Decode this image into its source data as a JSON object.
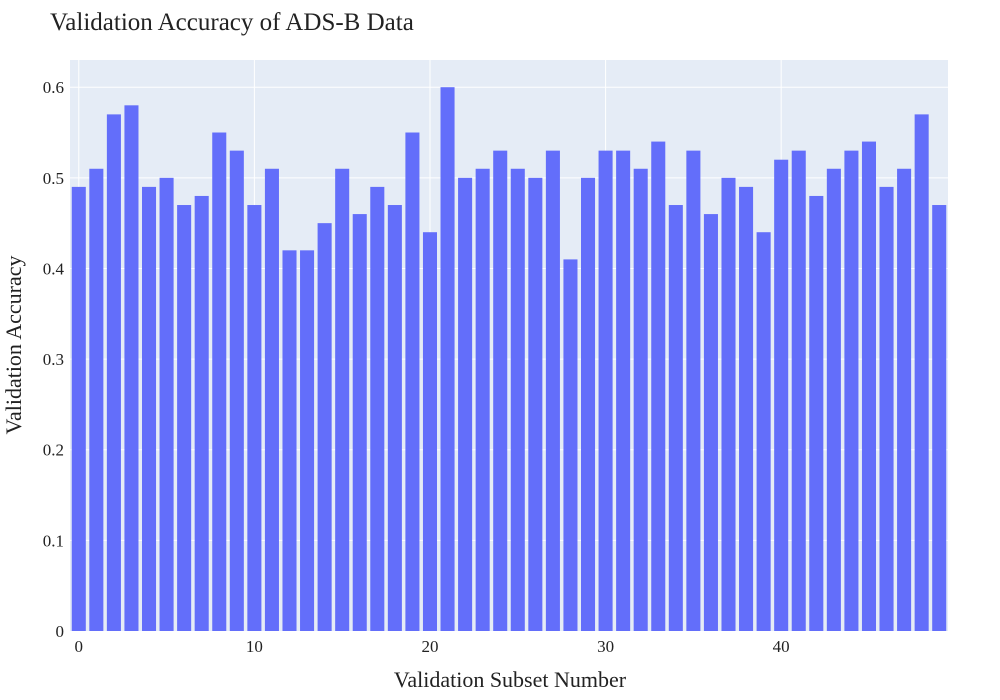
{
  "chart_data": {
    "type": "bar",
    "title": "Validation Accuracy of ADS-B Data",
    "xlabel": "Validation Subset Number",
    "ylabel": "Validation Accuracy",
    "x": [
      0,
      1,
      2,
      3,
      4,
      5,
      6,
      7,
      8,
      9,
      10,
      11,
      12,
      13,
      14,
      15,
      16,
      17,
      18,
      19,
      20,
      21,
      22,
      23,
      24,
      25,
      26,
      27,
      28,
      29,
      30,
      31,
      32,
      33,
      34,
      35,
      36,
      37,
      38,
      39,
      40,
      41,
      42,
      43,
      44,
      45,
      46,
      47,
      48,
      49
    ],
    "values": [
      0.49,
      0.51,
      0.57,
      0.58,
      0.49,
      0.5,
      0.47,
      0.48,
      0.55,
      0.53,
      0.47,
      0.51,
      0.42,
      0.42,
      0.45,
      0.51,
      0.46,
      0.49,
      0.47,
      0.55,
      0.44,
      0.6,
      0.5,
      0.51,
      0.53,
      0.51,
      0.5,
      0.53,
      0.41,
      0.5,
      0.53,
      0.53,
      0.51,
      0.54,
      0.47,
      0.53,
      0.46,
      0.5,
      0.49,
      0.44,
      0.52,
      0.53,
      0.48,
      0.51,
      0.53,
      0.54,
      0.49,
      0.51,
      0.57,
      0.47
    ],
    "xlim": [
      -0.5,
      49.5
    ],
    "ylim": [
      0,
      0.63
    ],
    "xticks": [
      0,
      10,
      20,
      30,
      40
    ],
    "xtick_labels": [
      "0",
      "10",
      "20",
      "30",
      "40"
    ],
    "yticks": [
      0,
      0.1,
      0.2,
      0.3,
      0.4,
      0.5,
      0.6
    ],
    "ytick_labels": [
      "0",
      "0.1",
      "0.2",
      "0.3",
      "0.4",
      "0.5",
      "0.6"
    ],
    "grid": true,
    "legend": "none",
    "colors": {
      "bar": "#636efa",
      "plot_bg": "#e5ecf6",
      "grid": "#ffffff"
    }
  }
}
